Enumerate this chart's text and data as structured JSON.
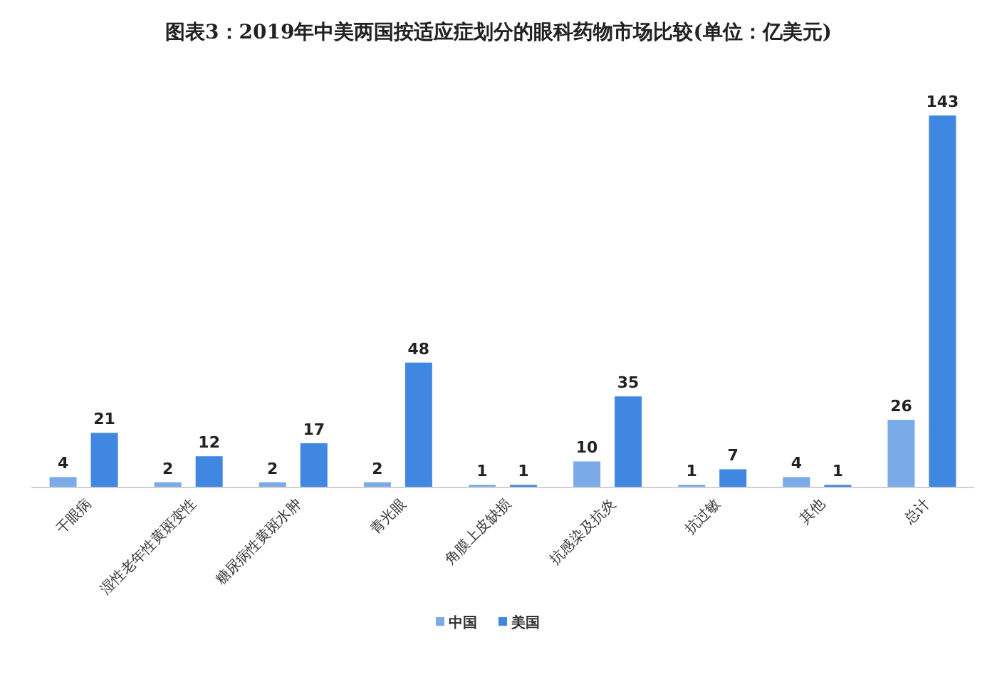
{
  "chart_data": {
    "type": "bar",
    "title": "图表3：2019年中美两国按适应症划分的眼科药物市场比较(单位：亿美元)",
    "categories": [
      "干眼病",
      "湿性老年性黄斑变性",
      "糖尿病性黄斑水肿",
      "青光眼",
      "角膜上皮缺损",
      "抗感染及抗炎",
      "抗过敏",
      "其他",
      "总计"
    ],
    "series": [
      {
        "name": "中国",
        "color": "#7aaae8",
        "values": [
          4,
          2,
          2,
          2,
          1,
          10,
          1,
          4,
          26
        ]
      },
      {
        "name": "美国",
        "color": "#3f87e0",
        "values": [
          21,
          12,
          17,
          48,
          1,
          35,
          7,
          1,
          143
        ]
      }
    ],
    "ylim": [
      0,
      143
    ],
    "tick_labels": "x",
    "data_labels": true,
    "legend": "bottom"
  }
}
